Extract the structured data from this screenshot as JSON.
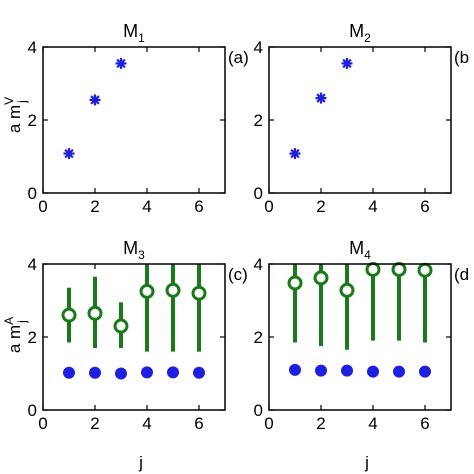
{
  "figure": {
    "ylabel_top": {
      "base": "a m",
      "sup": "V",
      "sub": "j"
    },
    "ylabel_bottom": {
      "base": "a m",
      "sup": "A",
      "sub": "j"
    },
    "xlabel": "j"
  },
  "chart_data": [
    {
      "type": "scatter",
      "title": "M",
      "title_sub": "1",
      "panel_label": "(a)",
      "xlim": [
        0,
        7
      ],
      "ylim": [
        0,
        4
      ],
      "xticks": [
        "0",
        "2",
        "4",
        "6"
      ],
      "yticks": [
        "0",
        "2",
        "4"
      ],
      "series": [
        {
          "marker": "asterisk",
          "color": "#1f1fe0",
          "x": [
            1,
            2,
            3
          ],
          "y": [
            1.08,
            2.55,
            3.55
          ]
        }
      ]
    },
    {
      "type": "scatter",
      "title": "M",
      "title_sub": "2",
      "panel_label": "(b",
      "xlim": [
        0,
        7
      ],
      "ylim": [
        0,
        4
      ],
      "xticks": [
        "0",
        "2",
        "4",
        "6"
      ],
      "yticks": [
        "0",
        "2",
        "4"
      ],
      "series": [
        {
          "marker": "asterisk",
          "color": "#1f1fe0",
          "x": [
            1,
            2,
            3
          ],
          "y": [
            1.08,
            2.6,
            3.55
          ]
        }
      ]
    },
    {
      "type": "scatter",
      "title": "M",
      "title_sub": "3",
      "panel_label": "(c)",
      "xlim": [
        0,
        7
      ],
      "ylim": [
        0,
        4
      ],
      "xticks": [
        "0",
        "2",
        "4",
        "6"
      ],
      "yticks": [
        "0",
        "2",
        "4"
      ],
      "series": [
        {
          "marker": "dot",
          "color": "#1f1fe0",
          "x": [
            1,
            2,
            3,
            4,
            5,
            6
          ],
          "y": [
            1.02,
            1.02,
            1.0,
            1.03,
            1.03,
            1.02
          ]
        },
        {
          "marker": "circle-errorbar",
          "color": "#1a7a1a",
          "x": [
            1,
            2,
            3,
            4,
            5,
            6
          ],
          "y": [
            2.6,
            2.65,
            2.3,
            3.25,
            3.28,
            3.2
          ],
          "ylow": [
            1.85,
            1.7,
            1.7,
            1.6,
            1.6,
            1.6
          ],
          "yhigh": [
            3.35,
            3.65,
            2.95,
            4.0,
            4.0,
            4.0
          ]
        }
      ]
    },
    {
      "type": "scatter",
      "title": "M",
      "title_sub": "4",
      "panel_label": "(d",
      "xlim": [
        0,
        7
      ],
      "ylim": [
        0,
        4
      ],
      "xticks": [
        "0",
        "2",
        "4",
        "6"
      ],
      "yticks": [
        "0",
        "2",
        "4"
      ],
      "series": [
        {
          "marker": "dot",
          "color": "#1f1fe0",
          "x": [
            1,
            2,
            3,
            4,
            5,
            6
          ],
          "y": [
            1.1,
            1.08,
            1.08,
            1.05,
            1.05,
            1.05
          ]
        },
        {
          "marker": "circle-errorbar",
          "color": "#1a7a1a",
          "x": [
            1,
            2,
            3,
            4,
            5,
            6
          ],
          "y": [
            3.48,
            3.62,
            3.28,
            3.85,
            3.85,
            3.83
          ],
          "ylow": [
            1.85,
            1.75,
            1.65,
            1.9,
            1.9,
            1.85
          ],
          "yhigh": [
            4.0,
            4.0,
            4.0,
            4.0,
            4.0,
            4.0
          ]
        }
      ]
    }
  ]
}
